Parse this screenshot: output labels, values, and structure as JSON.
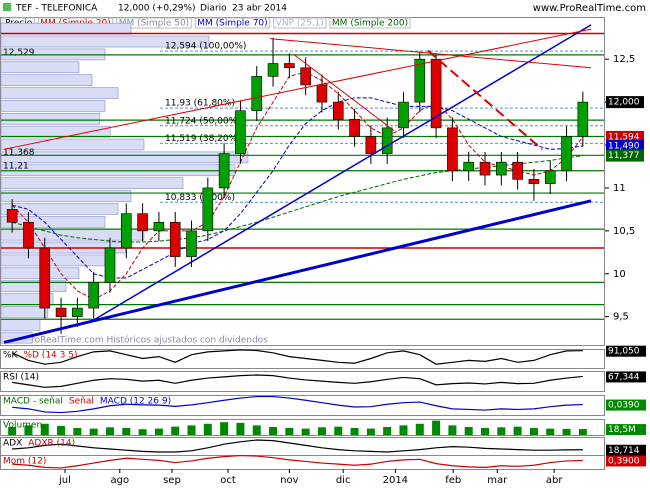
{
  "chart_data": {
    "type": "candlestick",
    "title": "TEF - TELEFONICA",
    "quote": "12,000 (+0,29%)",
    "period": "Diario",
    "date": "23 abr 2014",
    "source": "www.ProRealTime.com",
    "footer": "© ProRealTime.com  Históricos ajustados con dividendos",
    "legend": [
      {
        "name": "Precio",
        "color": "#000000"
      },
      {
        "name": "MM (Simple 20)",
        "color": "#cc0000"
      },
      {
        "name": "MM (Simple 50)",
        "color": "#8888aa"
      },
      {
        "name": "MM (Simple 70)",
        "color": "#0000cc"
      },
      {
        "name": "VNP (25,1)",
        "color": "#9fb8e8"
      },
      {
        "name": "MM (Simple 200)",
        "color": "#006600"
      }
    ],
    "xlim": [
      -0.5,
      35.5
    ],
    "xticks": [
      {
        "value": 3.24,
        "label": "jul"
      },
      {
        "value": 6.6,
        "label": "ago"
      },
      {
        "value": 9.8,
        "label": "sep"
      },
      {
        "value": 13.24,
        "label": "oct"
      },
      {
        "value": 17.0,
        "label": "nov"
      },
      {
        "value": 20.3,
        "label": "dic"
      },
      {
        "value": 23.5,
        "label": "2014"
      },
      {
        "value": 27.05,
        "label": "feb"
      },
      {
        "value": 29.75,
        "label": "mar"
      },
      {
        "value": 33.24,
        "label": "abr"
      }
    ],
    "ylim": [
      9.17,
      12.98
    ],
    "yticks": [
      {
        "value": 12.5,
        "label": "12,5"
      },
      12,
      {
        "value": 11.5,
        "label": "11,5"
      },
      11,
      {
        "value": 10.5,
        "label": "10,5"
      },
      10,
      {
        "value": 9.5,
        "label": "9,5"
      }
    ],
    "up_color": "#00a000",
    "down_color": "#dd0000",
    "open": [
      10.75,
      10.6,
      10.3,
      9.6,
      9.5,
      9.6,
      9.9,
      10.3,
      10.7,
      10.5,
      10.6,
      10.2,
      10.5,
      11.0,
      11.4,
      11.9,
      12.3,
      12.45,
      12.4,
      12.2,
      12.0,
      11.8,
      11.6,
      11.4,
      11.7,
      12.0,
      12.5,
      11.7,
      11.2,
      11.3,
      11.15,
      11.3,
      11.1,
      11.05,
      11.2,
      11.6
    ],
    "high": [
      10.87,
      10.72,
      10.42,
      9.72,
      9.72,
      10.02,
      10.42,
      10.82,
      10.82,
      10.72,
      10.72,
      10.62,
      11.12,
      11.52,
      12.02,
      12.42,
      12.75,
      12.57,
      12.52,
      12.32,
      12.12,
      11.92,
      11.72,
      11.82,
      12.12,
      12.59,
      12.55,
      11.82,
      11.42,
      11.42,
      11.42,
      11.42,
      11.22,
      11.32,
      11.72,
      12.12
    ],
    "low": [
      10.48,
      10.18,
      9.48,
      9.3,
      9.38,
      9.48,
      9.78,
      10.18,
      10.38,
      10.38,
      10.08,
      10.08,
      10.38,
      10.88,
      11.28,
      11.78,
      12.18,
      12.28,
      12.08,
      11.88,
      11.68,
      11.48,
      11.28,
      11.28,
      11.58,
      11.88,
      11.58,
      11.08,
      11.08,
      11.03,
      11.03,
      10.98,
      10.85,
      10.93,
      11.08,
      11.48
    ],
    "close": [
      10.6,
      10.3,
      9.6,
      9.5,
      9.6,
      9.9,
      10.3,
      10.7,
      10.5,
      10.6,
      10.2,
      10.5,
      11.0,
      11.4,
      11.9,
      12.3,
      12.45,
      12.4,
      12.2,
      12.0,
      11.8,
      11.6,
      11.4,
      11.7,
      12.0,
      12.5,
      11.7,
      11.2,
      11.3,
      11.15,
      11.3,
      11.1,
      11.05,
      11.2,
      11.6,
      12.0
    ],
    "close_label": "12,000",
    "averages": [
      {
        "color": "#cc0000",
        "last_label": "11,594",
        "values": [
          10.8,
          10.6,
          10.3,
          10.0,
          9.8,
          9.7,
          9.8,
          10.0,
          10.3,
          10.5,
          10.5,
          10.5,
          10.6,
          10.9,
          11.3,
          11.7,
          12.0,
          12.3,
          12.35,
          12.25,
          12.1,
          11.9,
          11.7,
          11.6,
          11.7,
          11.9,
          12.0,
          11.8,
          11.5,
          11.3,
          11.25,
          11.2,
          11.15,
          11.2,
          11.35,
          11.594
        ]
      },
      {
        "color": "#0000cc",
        "last_label": "11,490",
        "values": [
          10.8,
          10.75,
          10.6,
          10.4,
          10.2,
          10.0,
          9.95,
          9.95,
          10.05,
          10.15,
          10.25,
          10.35,
          10.4,
          10.5,
          10.7,
          10.95,
          11.2,
          11.5,
          11.75,
          11.9,
          12.0,
          12.05,
          12.05,
          12.0,
          11.95,
          11.95,
          11.95,
          11.9,
          11.8,
          11.7,
          11.6,
          11.55,
          11.5,
          11.45,
          11.46,
          11.49
        ]
      },
      {
        "color": "#006600",
        "last_label": "11,377",
        "values": [
          10.6,
          10.55,
          10.5,
          10.45,
          10.42,
          10.4,
          10.38,
          10.37,
          10.37,
          10.38,
          10.4,
          10.42,
          10.45,
          10.5,
          10.55,
          10.6,
          10.66,
          10.72,
          10.78,
          10.84,
          10.9,
          10.95,
          11.0,
          11.05,
          11.1,
          11.14,
          11.18,
          11.2,
          11.22,
          11.24,
          11.26,
          11.28,
          11.3,
          11.32,
          11.35,
          11.377
        ]
      }
    ],
    "trendlines": [
      {
        "color": "#0000cc",
        "width": 3,
        "x": [
          -0.5,
          35.5
        ],
        "y": [
          9.2,
          10.85
        ]
      },
      {
        "color": "#0000cc",
        "width": 1.5,
        "x": [
          4.9,
          35.5
        ],
        "y": [
          9.45,
          12.9
        ]
      },
      {
        "color": "#dd0000",
        "width": 1,
        "x": [
          -0.5,
          35.5
        ],
        "y": [
          11.45,
          12.85
        ]
      },
      {
        "color": "#dd0000",
        "width": 1,
        "x": [
          15.8,
          35.5
        ],
        "y": [
          12.74,
          12.4
        ]
      },
      {
        "color": "#dd0000",
        "width": 1,
        "x": [
          17.3,
          23.4
        ],
        "y": [
          12.55,
          11.67
        ]
      },
      {
        "color": "#dd0000",
        "width": 2,
        "x": [
          25.5,
          32.5
        ],
        "y": [
          12.6,
          11.45
        ]
      }
    ],
    "levels": [
      12.55,
      11.79,
      11.6,
      11.38,
      11.2,
      10.94,
      10.52,
      9.9,
      9.64,
      9.47
    ],
    "red_levels": [
      12.8,
      10.3
    ],
    "fibonacci": [
      {
        "value": 12.594,
        "label": "12,594 (100,00%)"
      },
      {
        "value": 11.93,
        "label": "11,93 (61,80%)"
      },
      {
        "value": 11.724,
        "label": "11,724 (50,00%)"
      },
      {
        "value": 11.519,
        "label": "11,519 (38,20%)"
      },
      {
        "value": 10.833,
        "label": "10,833 (0,00%)"
      }
    ],
    "profile_levels": [
      12.85,
      12.7,
      12.55,
      12.4,
      12.25,
      12.1,
      11.95,
      11.8,
      11.65,
      11.5,
      11.35,
      11.2,
      11.05,
      10.9,
      10.75,
      10.6,
      10.45,
      10.3,
      10.15,
      10.0,
      9.85,
      9.7,
      9.55,
      9.4,
      9.25
    ],
    "profile_values": [
      50,
      80,
      40,
      30,
      35,
      45,
      40,
      38,
      42,
      55,
      95,
      90,
      70,
      50,
      45,
      40,
      55,
      48,
      40,
      30,
      25,
      20,
      18,
      15,
      12
    ],
    "profile_labels": [
      {
        "value": 12.529,
        "label": "12,529"
      },
      {
        "value": 11.368,
        "label": "11,368"
      },
      {
        "value": 11.21,
        "label": "11,21"
      }
    ],
    "panels": [
      {
        "labels": [
          {
            "text": "%K",
            "color": "#000000"
          },
          {
            "text": "%D (14 3 5)",
            "color": "#cc0000"
          }
        ],
        "ylim": [
          0,
          100
        ],
        "color": "#000000",
        "value_label": "91,050",
        "label_bg": "#000000",
        "values": [
          80,
          40,
          20,
          30,
          60,
          85,
          90,
          70,
          50,
          60,
          30,
          70,
          85,
          90,
          95,
          92,
          80,
          60,
          50,
          40,
          30,
          25,
          50,
          80,
          90,
          70,
          20,
          30,
          40,
          35,
          50,
          30,
          40,
          70,
          90,
          91.05
        ]
      },
      {
        "labels": [
          {
            "text": "RSI (14)",
            "color": "#000000"
          }
        ],
        "ylim": [
          20,
          85
        ],
        "color": "#000000",
        "value_label": "67,344",
        "label_bg": "#000000",
        "values": [
          48,
          40,
          32,
          35,
          45,
          55,
          60,
          58,
          52,
          55,
          45,
          55,
          62,
          66,
          70,
          72,
          70,
          62,
          56,
          52,
          48,
          45,
          50,
          58,
          64,
          60,
          40,
          44,
          46,
          43,
          48,
          44,
          45,
          55,
          62,
          67.344
        ]
      },
      {
        "labels": [
          {
            "text": "MACD - señal",
            "color": "#006600"
          },
          {
            "text": "Señal",
            "color": "#cc0000"
          },
          {
            "text": "MACD (12 26 9)",
            "color": "#0000cc"
          }
        ],
        "ylim": [
          -0.3,
          0.35
        ],
        "color": "#0000cc",
        "value_label": "0,0390",
        "label_bg": "#008800",
        "values": [
          -0.05,
          -0.1,
          -0.2,
          -0.22,
          -0.18,
          -0.1,
          0,
          0.05,
          0.03,
          0.02,
          -0.02,
          0.03,
          0.1,
          0.18,
          0.25,
          0.3,
          0.3,
          0.25,
          0.18,
          0.1,
          0.02,
          -0.04,
          -0.03,
          0.05,
          0.1,
          0.12,
          0,
          -0.1,
          -0.12,
          -0.14,
          -0.1,
          -0.12,
          -0.1,
          -0.03,
          0.02,
          0.039
        ]
      },
      {
        "labels": [
          {
            "text": "Volumen",
            "color": "#006600"
          }
        ],
        "ylim": [
          0,
          50
        ],
        "color": "#008800",
        "bars": true,
        "value_label": "18,5M",
        "label_bg": "#008800",
        "values": [
          25,
          30,
          35,
          28,
          22,
          20,
          24,
          22,
          18,
          20,
          26,
          30,
          35,
          40,
          38,
          30,
          25,
          22,
          20,
          24,
          26,
          22,
          20,
          25,
          30,
          35,
          45,
          30,
          25,
          22,
          24,
          26,
          22,
          20,
          19,
          18.5
        ]
      },
      {
        "labels": [
          {
            "text": "ADX",
            "color": "#000000"
          },
          {
            "text": "ADXR (14)",
            "color": "#cc0000"
          }
        ],
        "ylim": [
          10,
          40
        ],
        "color": "#000000",
        "value_label": "18,714",
        "label_bg": "#000000",
        "values": [
          20,
          22,
          26,
          28,
          25,
          22,
          20,
          18,
          16,
          15,
          15,
          17,
          22,
          28,
          32,
          35,
          34,
          30,
          26,
          22,
          19,
          17,
          16,
          15,
          17,
          19,
          22,
          24,
          23,
          21,
          20,
          19,
          18,
          18,
          18.5,
          18.714
        ]
      },
      {
        "labels": [
          {
            "text": "Mom (12)",
            "color": "#cc0000"
          }
        ],
        "ylim": [
          -1.2,
          1.4
        ],
        "color": "#cc0000",
        "value_label": "0,3900",
        "label_bg": "#cc0000",
        "values": [
          -0.3,
          -0.5,
          -0.9,
          -1,
          -0.6,
          -0.1,
          0.4,
          0.8,
          0.6,
          0.4,
          0,
          0.3,
          0.8,
          1.1,
          1.3,
          1.2,
          0.9,
          0.5,
          0.2,
          -0.1,
          -0.3,
          -0.5,
          -0.3,
          0.2,
          0.5,
          0.6,
          -0.2,
          -0.6,
          -0.8,
          -0.9,
          -0.6,
          -0.7,
          -0.5,
          0,
          0.3,
          0.39
        ]
      }
    ]
  }
}
